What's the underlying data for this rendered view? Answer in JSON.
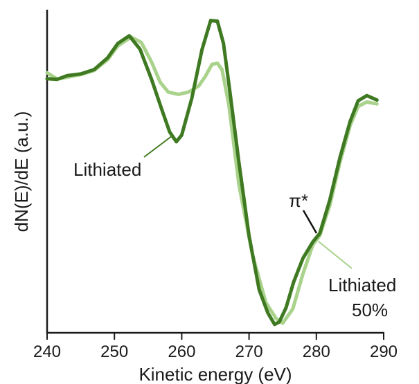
{
  "chart_data": {
    "type": "line",
    "xlabel": "Kinetic energy (eV)",
    "ylabel": "dN(E)/dE (a.u.)",
    "xlim": [
      240,
      290
    ],
    "ylim": [
      0,
      1
    ],
    "xticks": [
      240,
      250,
      260,
      270,
      280,
      290
    ],
    "grid": false,
    "series": [
      {
        "name": "Lithiated",
        "color": "#3f7a22",
        "x": [
          240,
          241.5,
          243,
          245,
          247,
          249,
          250.5,
          252.2,
          253.8,
          255.5,
          257,
          258.2,
          259.2,
          260,
          261.5,
          263,
          264.3,
          265.3,
          266.2,
          267.2,
          268.5,
          270,
          271.5,
          272.8,
          273.8,
          274.5,
          275.5,
          276.6,
          278,
          279.5,
          280.5,
          282,
          283.5,
          285,
          286.2,
          287.5,
          289
        ],
        "y": [
          0.783,
          0.781,
          0.793,
          0.798,
          0.812,
          0.849,
          0.894,
          0.918,
          0.876,
          0.782,
          0.689,
          0.616,
          0.585,
          0.606,
          0.722,
          0.874,
          0.966,
          0.964,
          0.894,
          0.735,
          0.52,
          0.29,
          0.12,
          0.047,
          0.011,
          0.019,
          0.064,
          0.143,
          0.219,
          0.271,
          0.297,
          0.402,
          0.535,
          0.648,
          0.714,
          0.73,
          0.716
        ]
      },
      {
        "name": "Lithiated 50%",
        "color": "#a9d28b",
        "x": [
          240,
          241.5,
          243,
          245,
          247,
          249,
          250.5,
          252.5,
          254,
          255.5,
          256.8,
          258,
          259.5,
          261,
          262.5,
          263.5,
          264.5,
          265.3,
          266,
          267,
          268.5,
          270.5,
          272.5,
          274,
          275,
          276.5,
          278,
          279.5,
          280.5,
          282,
          283.5,
          285,
          286.2,
          287.5,
          289
        ],
        "y": [
          0.802,
          0.782,
          0.788,
          0.796,
          0.809,
          0.843,
          0.886,
          0.914,
          0.897,
          0.836,
          0.772,
          0.741,
          0.734,
          0.741,
          0.76,
          0.79,
          0.828,
          0.832,
          0.811,
          0.701,
          0.45,
          0.23,
          0.08,
          0.03,
          0.015,
          0.06,
          0.17,
          0.262,
          0.29,
          0.385,
          0.52,
          0.635,
          0.696,
          0.71,
          0.704
        ]
      }
    ],
    "annotations": [
      {
        "text": "Lithiated",
        "series": "Lithiated"
      },
      {
        "text": "π*"
      },
      {
        "text_lines": [
          "Lithiated",
          "50%"
        ],
        "series": "Lithiated 50%"
      }
    ]
  }
}
